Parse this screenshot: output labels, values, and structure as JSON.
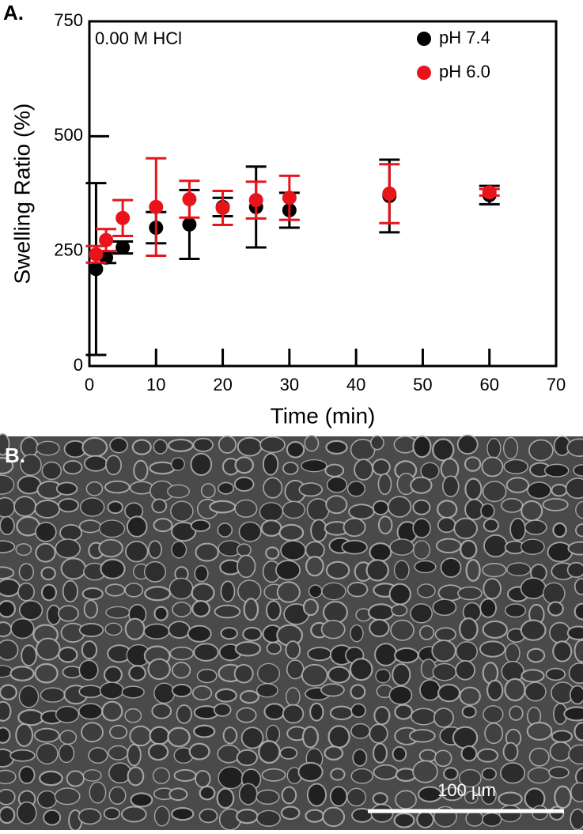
{
  "panels": [
    "A.",
    "B."
  ],
  "scale_bar": "100 µm",
  "chart_data": {
    "type": "scatter",
    "y_label": "Swelling Ratio (%)",
    "x_label": "Time (min)",
    "annotation": "0.00 M HCl",
    "x": [
      1,
      2.5,
      5,
      10,
      15,
      20,
      25,
      30,
      45,
      60
    ],
    "series": [
      {
        "name": "pH 7.4",
        "color": "#000000",
        "values": [
          211,
          236,
          258,
          301,
          308,
          346,
          346,
          339,
          370,
          372
        ],
        "errors": [
          187,
          12,
          13,
          34,
          75,
          20,
          88,
          38,
          79,
          20
        ]
      },
      {
        "name": "pH 6.0",
        "color": "#e8141b",
        "values": [
          243,
          274,
          322,
          346,
          363,
          344,
          361,
          366,
          375,
          378
        ],
        "errors": [
          18,
          24,
          39,
          106,
          40,
          37,
          40,
          48,
          64,
          7
        ]
      }
    ],
    "xlim": [
      0,
      70
    ],
    "xticks": [
      0,
      10,
      20,
      30,
      40,
      50,
      60,
      70
    ],
    "ylim": [
      0,
      750
    ],
    "yticks": [
      0,
      250,
      500,
      750
    ],
    "legend": "upper right"
  }
}
